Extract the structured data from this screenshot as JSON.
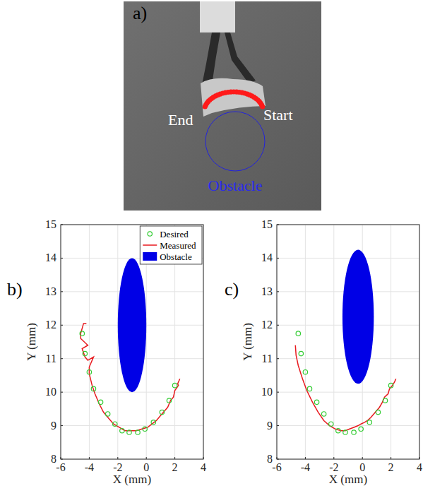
{
  "figure": {
    "panel_a": {
      "label": "a)",
      "end": "End",
      "start": "Start",
      "obstacle": "Obstacle"
    },
    "panel_labels": [
      "b)",
      "c)"
    ]
  },
  "chart_data": [
    {
      "type": "line",
      "x_label": "X (mm)",
      "y_label": "Y (mm)",
      "xlim": [
        -6,
        4
      ],
      "xticks": [
        -6,
        -4,
        -2,
        0,
        2,
        4
      ],
      "ylim": [
        8,
        15
      ],
      "yticks": [
        8,
        9,
        10,
        11,
        12,
        13,
        14,
        15
      ],
      "grid": true,
      "legend": "top-right",
      "series": [
        {
          "name": "Desired",
          "type": "scatter",
          "marker": "circle",
          "color": "#33cc33",
          "x": [
            -4.5,
            -4.3,
            -4.0,
            -3.7,
            -3.2,
            -2.7,
            -2.2,
            -1.7,
            -1.2,
            -0.6,
            -0.1,
            0.5,
            1.1,
            1.6,
            2.0
          ],
          "values": [
            11.75,
            11.15,
            10.6,
            10.1,
            9.7,
            9.35,
            9.05,
            8.85,
            8.8,
            8.8,
            8.9,
            9.1,
            9.4,
            9.75,
            10.2
          ]
        },
        {
          "name": "Measured",
          "type": "line",
          "line_style": "solid",
          "color": "#e8191e",
          "x": [
            2.35,
            2.2,
            2.25,
            2.0,
            1.9,
            1.7,
            1.5,
            1.3,
            1.0,
            0.7,
            0.4,
            0.1,
            -0.3,
            -0.7,
            -1.1,
            -1.5,
            -1.9,
            -2.3,
            -2.7,
            -3.0,
            -3.3,
            -3.6,
            -3.8,
            -4.0,
            -4.0,
            -3.7,
            -4.1,
            -4.3,
            -4.5,
            -4.1,
            -4.6,
            -4.6,
            -4.4,
            -4.2
          ],
          "values": [
            10.4,
            10.25,
            10.2,
            10.05,
            9.85,
            9.75,
            9.55,
            9.45,
            9.3,
            9.15,
            9.05,
            8.95,
            8.9,
            8.85,
            8.85,
            8.85,
            8.95,
            9.05,
            9.25,
            9.4,
            9.65,
            9.95,
            10.2,
            10.55,
            10.75,
            11.05,
            10.95,
            11.05,
            11.3,
            11.4,
            11.6,
            11.75,
            12.05,
            12.05
          ]
        },
        {
          "name": "Obstacle",
          "type": "ellipse",
          "color": "#0000e6",
          "x": [
            -1.0
          ],
          "values": [
            12.0
          ],
          "x_radius": [
            1.0
          ],
          "y_radius": [
            2.0
          ]
        }
      ]
    },
    {
      "type": "line",
      "x_label": "X (mm)",
      "y_label": "Y (mm)",
      "xlim": [
        -6,
        4
      ],
      "xticks": [
        -6,
        -4,
        -2,
        0,
        2,
        4
      ],
      "ylim": [
        8,
        15
      ],
      "yticks": [
        8,
        9,
        10,
        11,
        12,
        13,
        14,
        15
      ],
      "grid": true,
      "series": [
        {
          "name": "Desired",
          "type": "scatter",
          "marker": "circle",
          "color": "#33cc33",
          "x": [
            -4.5,
            -4.3,
            -4.0,
            -3.7,
            -3.2,
            -2.7,
            -2.2,
            -1.7,
            -1.2,
            -0.6,
            -0.1,
            0.5,
            1.1,
            1.6,
            2.0
          ],
          "values": [
            11.75,
            11.15,
            10.6,
            10.1,
            9.7,
            9.35,
            9.05,
            8.85,
            8.8,
            8.8,
            8.9,
            9.1,
            9.4,
            9.75,
            10.2
          ]
        },
        {
          "name": "Measured",
          "type": "line",
          "line_style": "solid",
          "color": "#e8191e",
          "x": [
            2.35,
            2.25,
            2.1,
            1.9,
            1.8,
            1.55,
            1.4,
            1.2,
            1.0,
            0.8,
            0.6,
            0.35,
            0.15,
            -0.1,
            -0.3,
            -0.6,
            -0.9,
            -1.2,
            -1.5,
            -1.9,
            -2.3,
            -2.7,
            -3.1,
            -3.5,
            -3.9,
            -4.2,
            -4.5,
            -4.65,
            -4.7
          ],
          "values": [
            10.4,
            10.3,
            10.2,
            10.1,
            9.95,
            9.85,
            9.7,
            9.55,
            9.45,
            9.35,
            9.25,
            9.15,
            9.1,
            9.05,
            9.0,
            8.95,
            8.9,
            8.85,
            8.85,
            8.9,
            9.0,
            9.15,
            9.4,
            9.7,
            10.05,
            10.4,
            10.8,
            11.1,
            11.4
          ]
        },
        {
          "name": "Obstacle",
          "type": "ellipse",
          "color": "#0000e6",
          "x": [
            -0.3
          ],
          "values": [
            12.25
          ],
          "x_radius": [
            1.1
          ],
          "y_radius": [
            2.0
          ]
        }
      ]
    }
  ]
}
